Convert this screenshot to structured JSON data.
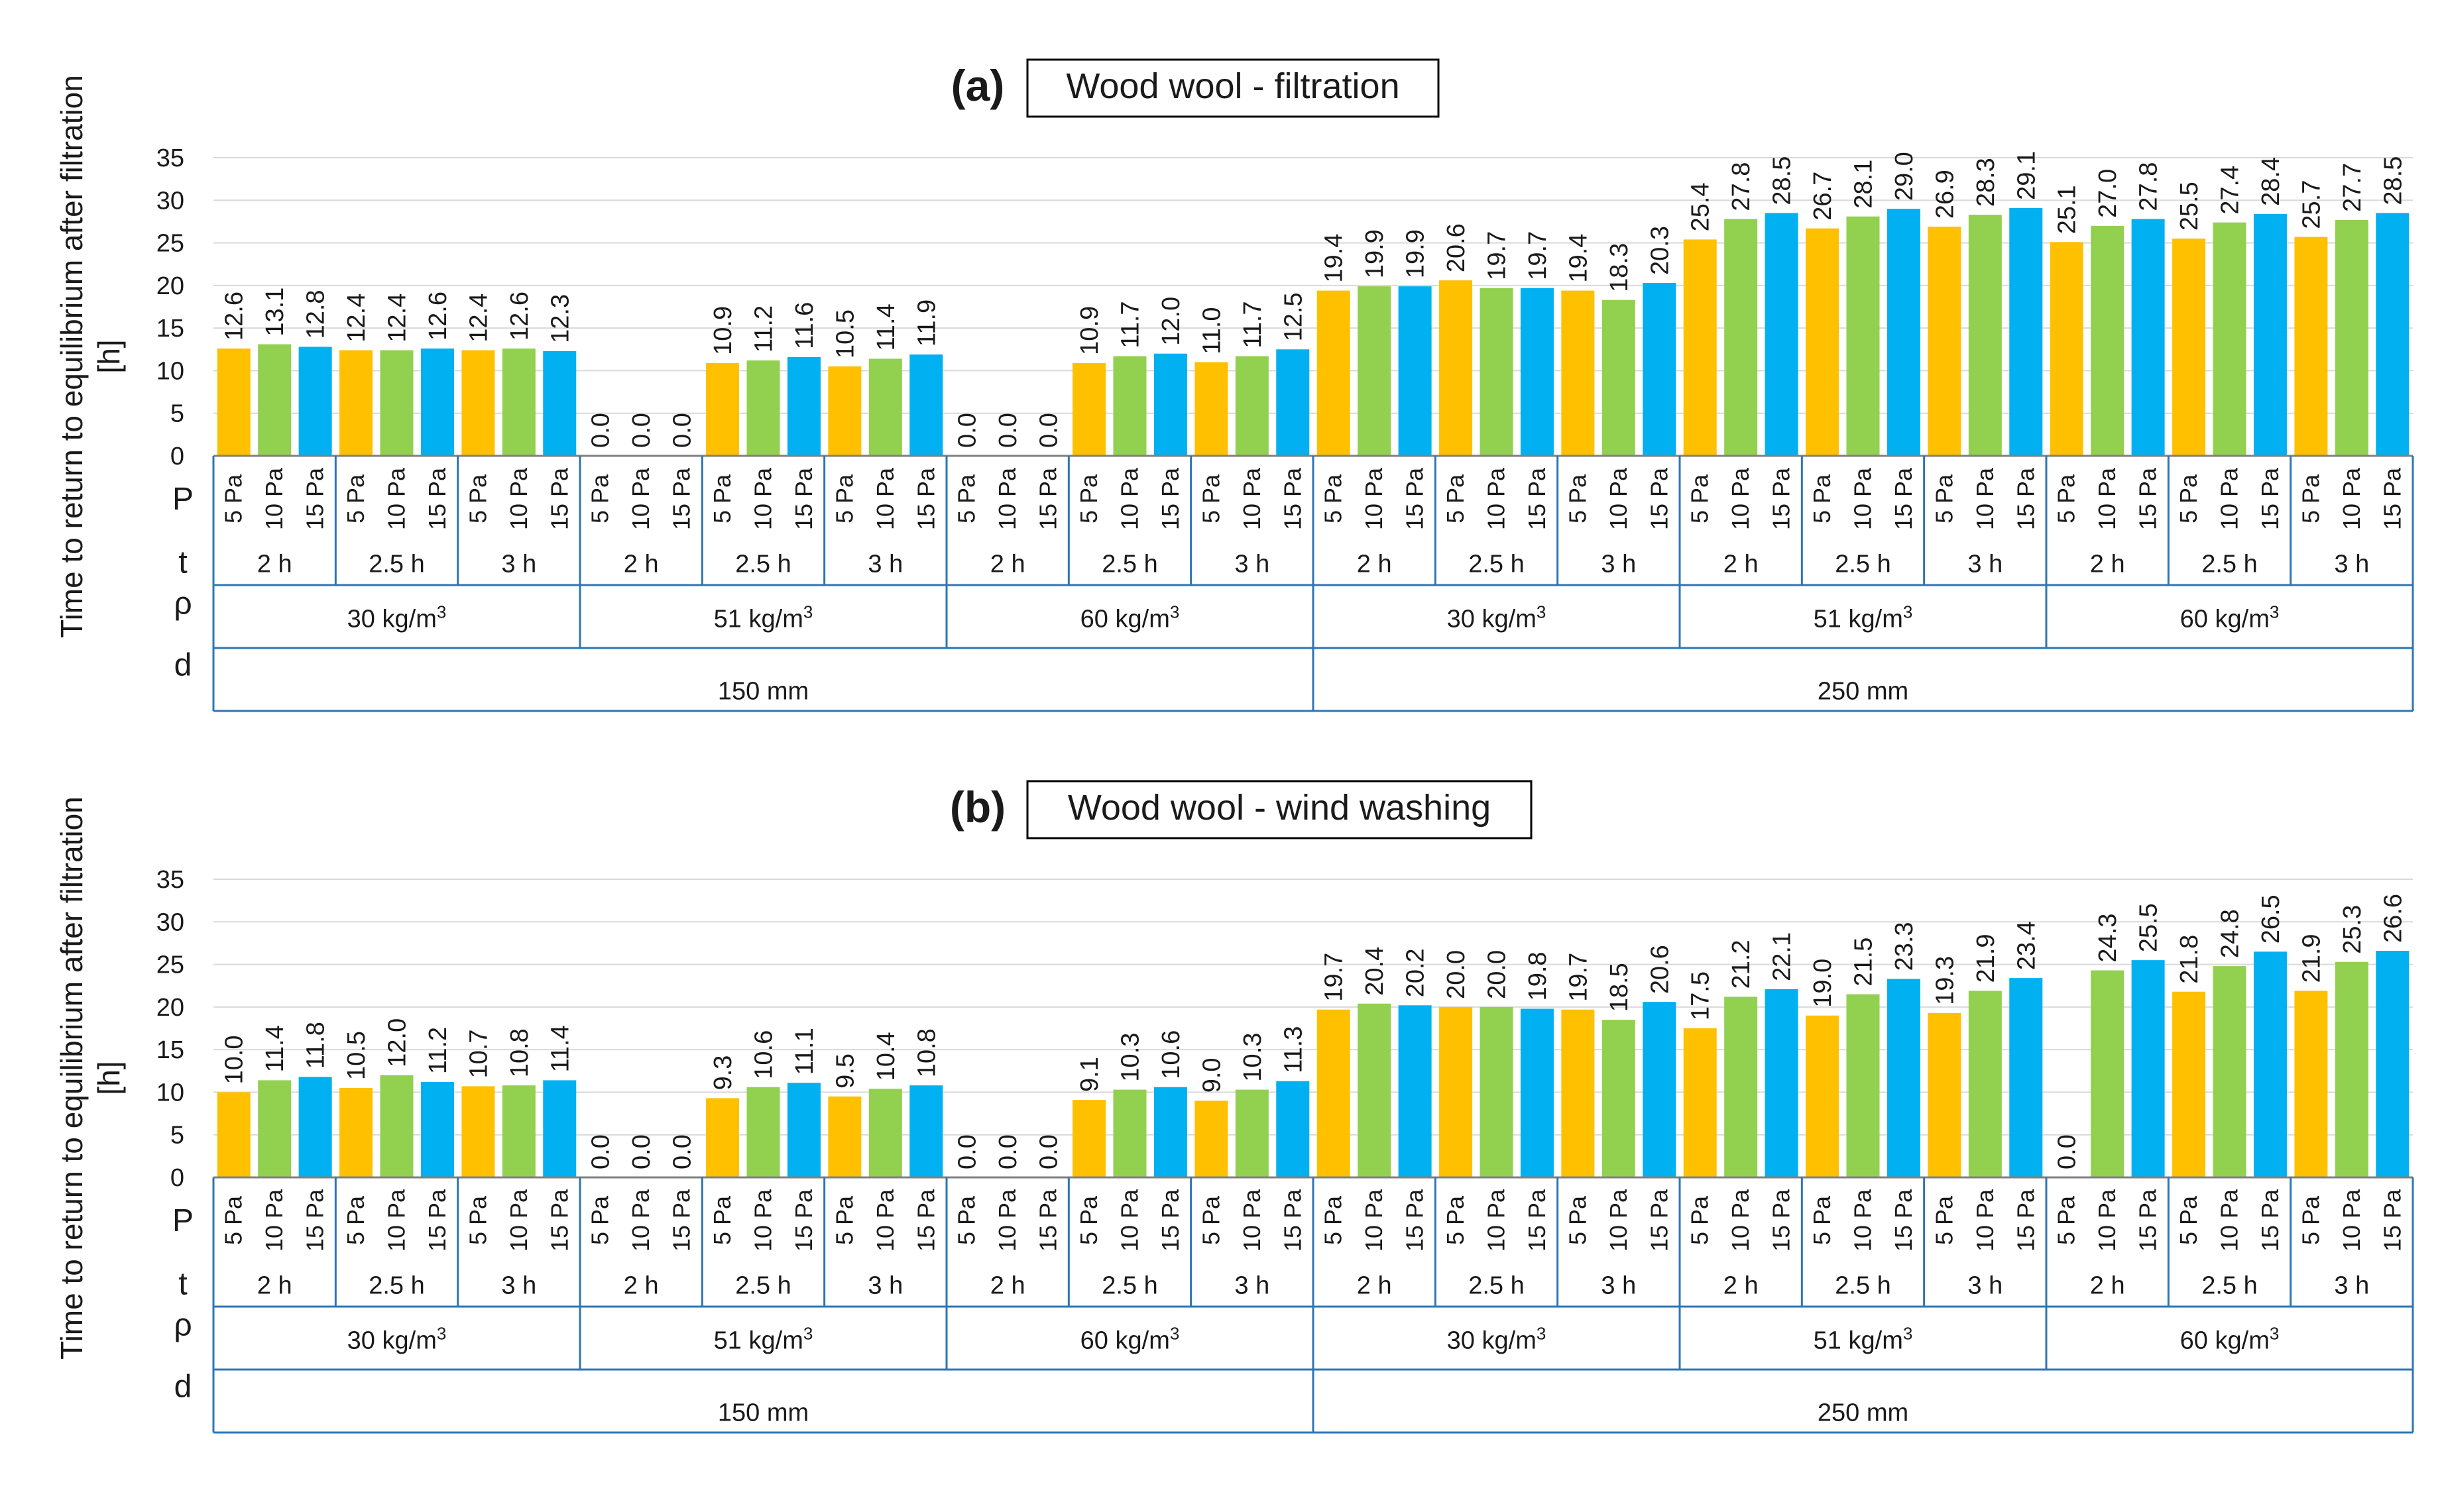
{
  "colors": {
    "p5": "#ffc000",
    "p10": "#92d050",
    "p15": "#00b0f0",
    "grid": "#d9d9d9",
    "table": "#2e75b6",
    "axis": "#808080"
  },
  "row_labels": {
    "P": "P",
    "t": "t",
    "rho": "ρ",
    "d": "d"
  },
  "pressure_labels": [
    "5 Pa",
    "10 Pa",
    "15 Pa"
  ],
  "time_labels": [
    "2 h",
    "2.5 h",
    "3 h"
  ],
  "density_labels": [
    "30 kg/m",
    "51 kg/m",
    "60 kg/m"
  ],
  "density_exponent": "3",
  "thickness_labels": [
    "150 mm",
    "250 mm"
  ],
  "chart_data": [
    {
      "type": "bar",
      "panel": "(a)",
      "title": "Wood wool - filtration",
      "ylabel": "Time to return to equilibrium after filtration [h]",
      "ylim": [
        0,
        35
      ],
      "yticks": [
        0,
        5,
        10,
        15,
        20,
        25,
        30,
        35
      ],
      "grid": true,
      "values": [
        [
          12.6,
          13.1,
          12.8
        ],
        [
          12.4,
          12.4,
          12.6
        ],
        [
          12.4,
          12.6,
          12.3
        ],
        [
          0.0,
          0.0,
          0.0
        ],
        [
          10.9,
          11.2,
          11.6
        ],
        [
          10.5,
          11.4,
          11.9
        ],
        [
          0.0,
          0.0,
          0.0
        ],
        [
          10.9,
          11.7,
          12.0
        ],
        [
          11.0,
          11.7,
          12.5
        ],
        [
          19.4,
          19.9,
          19.9
        ],
        [
          20.6,
          19.7,
          19.7
        ],
        [
          19.4,
          18.3,
          20.3
        ],
        [
          25.4,
          27.8,
          28.5
        ],
        [
          26.7,
          28.1,
          29.0
        ],
        [
          26.9,
          28.3,
          29.1
        ],
        [
          25.1,
          27.0,
          27.8
        ],
        [
          25.5,
          27.4,
          28.4
        ],
        [
          25.7,
          27.7,
          28.5
        ]
      ],
      "value_labels": [
        [
          "12.6",
          "13.1",
          "12.8"
        ],
        [
          "12.4",
          "12.4",
          "12.6"
        ],
        [
          "12.4",
          "12.6",
          "12.3"
        ],
        [
          "0.0",
          "0.0",
          "0.0"
        ],
        [
          "10.9",
          "11.2",
          "11.6"
        ],
        [
          "10.5",
          "11.4",
          "11.9"
        ],
        [
          "0.0",
          "0.0",
          "0.0"
        ],
        [
          "10.9",
          "11.7",
          "12.0"
        ],
        [
          "11.0",
          "11.7",
          "12.5"
        ],
        [
          "19.4",
          "19.9",
          "19.9"
        ],
        [
          "20.6",
          "19.7",
          "19.7"
        ],
        [
          "19.4",
          "18.3",
          "20.3"
        ],
        [
          "25.4",
          "27.8",
          "28.5"
        ],
        [
          "26.7",
          "28.1",
          "29.0"
        ],
        [
          "26.9",
          "28.3",
          "29.1"
        ],
        [
          "25.1",
          "27.0",
          "27.8"
        ],
        [
          "25.5",
          "27.4",
          "28.4"
        ],
        [
          "25.7",
          "27.7",
          "28.5"
        ]
      ]
    },
    {
      "type": "bar",
      "panel": "(b)",
      "title": "Wood wool - wind washing",
      "ylabel": "Time to return to equilibrium after filtration [h]",
      "ylim": [
        0,
        35
      ],
      "yticks": [
        0,
        5,
        10,
        15,
        20,
        25,
        30,
        35
      ],
      "grid": true,
      "values": [
        [
          10.0,
          11.4,
          11.8
        ],
        [
          10.5,
          12.0,
          11.2
        ],
        [
          10.7,
          10.8,
          11.4
        ],
        [
          0.0,
          0.0,
          0.0
        ],
        [
          9.3,
          10.6,
          11.1
        ],
        [
          9.5,
          10.4,
          10.8
        ],
        [
          0.0,
          0.0,
          0.0
        ],
        [
          9.1,
          10.3,
          10.6
        ],
        [
          9.0,
          10.3,
          11.3
        ],
        [
          19.7,
          20.4,
          20.2
        ],
        [
          20.0,
          20.0,
          19.8
        ],
        [
          19.7,
          18.5,
          20.6
        ],
        [
          17.5,
          21.2,
          22.1
        ],
        [
          19.0,
          21.5,
          23.3
        ],
        [
          19.3,
          21.9,
          23.4
        ],
        [
          0.0,
          24.3,
          25.5
        ],
        [
          21.8,
          24.8,
          26.5
        ],
        [
          21.9,
          25.3,
          26.6
        ]
      ],
      "value_labels": [
        [
          "10.0",
          "11.4",
          "11.8"
        ],
        [
          "10.5",
          "12.0",
          "11.2"
        ],
        [
          "10.7",
          "10.8",
          "11.4"
        ],
        [
          "0.0",
          "0.0",
          "0.0"
        ],
        [
          "9.3",
          "10.6",
          "11.1"
        ],
        [
          "9.5",
          "10.4",
          "10.8"
        ],
        [
          "0.0",
          "0.0",
          "0.0"
        ],
        [
          "9.1",
          "10.3",
          "10.6"
        ],
        [
          "9.0",
          "10.3",
          "11.3"
        ],
        [
          "19.7",
          "20.4",
          "20.2"
        ],
        [
          "20.0",
          "20.0",
          "19.8"
        ],
        [
          "19.7",
          "18.5",
          "20.6"
        ],
        [
          "17.5",
          "21.2",
          "22.1"
        ],
        [
          "19.0",
          "21.5",
          "23.3"
        ],
        [
          "19.3",
          "21.9",
          "23.4"
        ],
        [
          "0.0",
          "24.3",
          "25.5"
        ],
        [
          "21.8",
          "24.8",
          "26.5"
        ],
        [
          "21.9",
          "25.3",
          "26.6"
        ]
      ]
    }
  ]
}
